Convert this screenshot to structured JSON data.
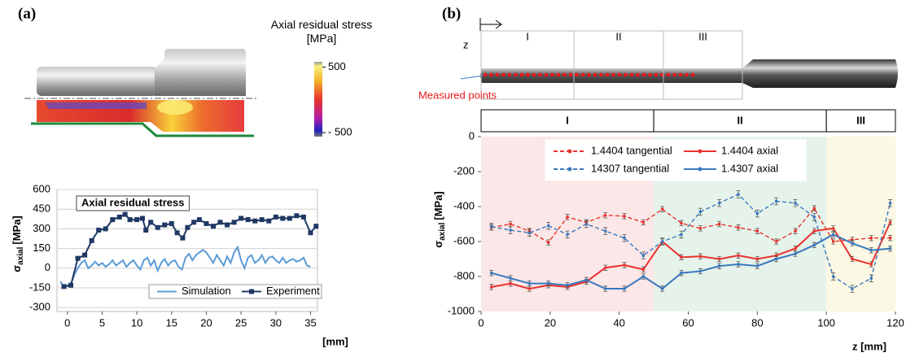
{
  "panel_labels": [
    "(a)",
    "(b)"
  ],
  "colorbar": {
    "title": "Axial residual stress [MPa]",
    "lim": [
      -560,
      580
    ],
    "ticks": [
      500,
      {
        "value": -500,
        "label": "- 500"
      }
    ]
  },
  "photo": {
    "axis_label": "z",
    "sections": [
      "I",
      "II",
      "III"
    ],
    "annotation": "Measured points"
  },
  "chart_data": [
    {
      "type": "line",
      "title": "Axial residual stress",
      "ylabel": [
        "σ",
        "axial",
        "[MPa]"
      ],
      "xlabel": "[mm]",
      "xlim": [
        -1.5,
        36
      ],
      "ylim": [
        -330,
        600
      ],
      "xticks": [
        0,
        5,
        10,
        15,
        20,
        25,
        30,
        35
      ],
      "yticks": [
        -300,
        -150,
        0,
        150,
        300,
        450,
        600
      ],
      "grid": true,
      "legend": "lower center",
      "series": [
        {
          "name": "Simulation",
          "color": "#5b9bd5",
          "marker": "none",
          "line_style": "solid",
          "x": [
            -1,
            -0.5,
            0,
            0.5,
            1,
            1.5,
            2,
            2.5,
            3,
            3.5,
            4,
            4.5,
            5,
            5.5,
            6,
            6.5,
            7,
            7.5,
            8,
            8.5,
            9,
            9.5,
            10,
            10.5,
            11,
            11.5,
            12,
            12.5,
            13,
            13.5,
            14,
            14.5,
            15,
            15.5,
            16,
            16.5,
            17,
            17.5,
            18,
            18.5,
            19,
            19.5,
            20,
            20.5,
            21,
            21.5,
            22,
            22.5,
            23,
            23.5,
            24,
            24.5,
            25,
            25.5,
            26,
            26.5,
            27,
            27.5,
            28,
            28.5,
            29,
            29.5,
            30,
            30.5,
            31,
            31.5,
            32,
            32.5,
            33,
            33.5,
            34,
            34.5,
            35
          ],
          "values": [
            -100,
            -150,
            -130,
            -120,
            -50,
            0,
            40,
            60,
            0,
            20,
            50,
            20,
            40,
            10,
            30,
            60,
            20,
            40,
            60,
            10,
            40,
            60,
            20,
            -10,
            60,
            80,
            20,
            60,
            -20,
            40,
            70,
            20,
            50,
            60,
            10,
            -10,
            80,
            110,
            60,
            100,
            120,
            140,
            120,
            80,
            40,
            100,
            60,
            20,
            90,
            40,
            120,
            160,
            60,
            0,
            80,
            100,
            40,
            60,
            100,
            40,
            80,
            90,
            60,
            40,
            80,
            40,
            60,
            70,
            50,
            60,
            80,
            20,
            10
          ]
        },
        {
          "name": "Experiment",
          "color": "#1f3864",
          "marker": "square",
          "line_style": "solid",
          "x": [
            -0.5,
            0.5,
            1.5,
            2.5,
            3.5,
            4.5,
            5.5,
            6.5,
            7.5,
            8.3,
            9,
            10,
            10.8,
            11.3,
            12,
            13,
            14,
            15,
            15.8,
            16.6,
            17.3,
            18.2,
            19,
            20,
            21,
            22,
            23,
            24,
            25,
            26,
            27,
            28,
            29,
            30,
            31,
            32,
            33,
            34,
            35,
            35.8
          ],
          "values": [
            -140,
            -130,
            75,
            100,
            210,
            290,
            300,
            370,
            390,
            410,
            370,
            370,
            380,
            290,
            350,
            310,
            330,
            340,
            270,
            230,
            310,
            350,
            370,
            340,
            320,
            350,
            330,
            350,
            380,
            370,
            360,
            370,
            360,
            390,
            380,
            380,
            400,
            390,
            270,
            320
          ]
        }
      ]
    },
    {
      "type": "line",
      "ylabel": [
        "σ",
        "axial",
        "[MPa]"
      ],
      "xlabel": "z [mm]",
      "xlim": [
        0,
        120
      ],
      "ylim": [
        -1000,
        0
      ],
      "xticks": [
        0,
        20,
        40,
        60,
        80,
        100,
        120
      ],
      "yticks": [
        0,
        -200,
        -400,
        -600,
        -800,
        -1000
      ],
      "grid": false,
      "legend": "upper center",
      "regions": [
        {
          "label": "I",
          "from": 0,
          "to": 50,
          "color": "#fbe7e7"
        },
        {
          "label": "II",
          "from": 50,
          "to": 100,
          "color": "#e6f3ea"
        },
        {
          "label": "III",
          "from": 100,
          "to": 120,
          "color": "#fbf8e4"
        }
      ],
      "x": [
        3,
        8.5,
        14,
        19.5,
        25,
        30.5,
        36,
        41.5,
        47,
        52.5,
        58,
        63.5,
        69,
        74.5,
        80,
        85.5,
        91,
        96.5,
        102,
        107.5,
        113,
        118.5
      ],
      "series": [
        {
          "name": "1.4404 tangential",
          "color": "#e8322e",
          "line_style": "dashed",
          "marker": "dot",
          "error": 15,
          "values": [
            -520,
            -500,
            -540,
            -605,
            -460,
            -490,
            -450,
            -455,
            -490,
            -415,
            -495,
            -525,
            -500,
            -520,
            -540,
            -600,
            -540,
            -410,
            -600,
            -590,
            -580,
            -580
          ]
        },
        {
          "name": "1.4404 axial",
          "color": "#e8322e",
          "line_style": "solid",
          "marker": "dot",
          "error": 15,
          "values": [
            -860,
            -840,
            -870,
            -850,
            -860,
            -830,
            -750,
            -735,
            -760,
            -600,
            -690,
            -685,
            -700,
            -680,
            -700,
            -680,
            -640,
            -540,
            -525,
            -700,
            -730,
            -490
          ]
        },
        {
          "name": "14307 tangential",
          "color": "#3a78bd",
          "line_style": "dashed",
          "marker": "dot",
          "error": 20,
          "values": [
            -515,
            -535,
            -550,
            -510,
            -560,
            -500,
            -540,
            -580,
            -680,
            -600,
            -560,
            -430,
            -380,
            -330,
            -440,
            -370,
            -380,
            -460,
            -800,
            -870,
            -810,
            -380
          ]
        },
        {
          "name": "1.4307 axial",
          "color": "#3a78bd",
          "line_style": "solid",
          "marker": "dot",
          "error": 15,
          "values": [
            -780,
            -810,
            -840,
            -840,
            -850,
            -820,
            -870,
            -870,
            -800,
            -870,
            -780,
            -770,
            -740,
            -730,
            -740,
            -700,
            -670,
            -620,
            -560,
            -610,
            -650,
            -640
          ]
        }
      ]
    }
  ]
}
